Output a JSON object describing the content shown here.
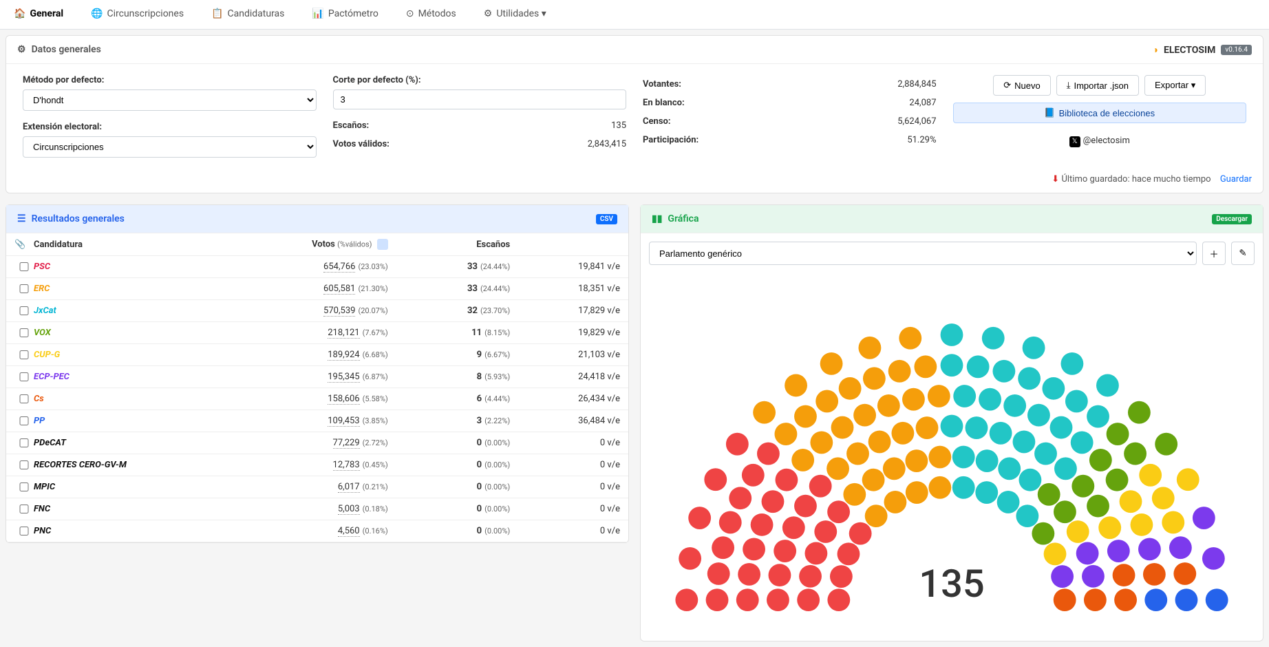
{
  "nav": {
    "tabs": [
      {
        "label": "General",
        "icon": "🏠",
        "active": true
      },
      {
        "label": "Circunscripciones",
        "icon": "🌐"
      },
      {
        "label": "Candidaturas",
        "icon": "📋"
      },
      {
        "label": "Pactómetro",
        "icon": "📊"
      },
      {
        "label": "Métodos",
        "icon": "⊙"
      },
      {
        "label": "Utilidades ▾",
        "icon": "⚙"
      }
    ]
  },
  "brand": {
    "name": "ELECTOSIM",
    "version": "v0.16.4",
    "logo_color": "#f59e0b"
  },
  "general": {
    "title": "Datos generales",
    "method_label": "Método por defecto:",
    "method_value": "D'hondt",
    "extension_label": "Extensión electoral:",
    "extension_value": "Circunscripciones",
    "cut_label": "Corte por defecto (%):",
    "cut_value": "3",
    "seats_label": "Escaños:",
    "seats_value": "135",
    "valid_label": "Votos válidos:",
    "valid_value": "2,843,415",
    "voters_label": "Votantes:",
    "voters_value": "2,884,845",
    "blank_label": "En blanco:",
    "blank_value": "24,087",
    "census_label": "Censo:",
    "census_value": "5,624,067",
    "turnout_label": "Participación:",
    "turnout_value": "51.29%",
    "btn_new": "Nuevo",
    "btn_import": "Importar .json",
    "btn_export": "Exportar ▾",
    "btn_library": "Biblioteca de elecciones",
    "social_handle": "@electosim",
    "last_saved_prefix": "Último guardado: ",
    "last_saved_value": "hace mucho tiempo",
    "save_link": "Guardar"
  },
  "results": {
    "title": "Resultados generales",
    "csv_badge": "CSV",
    "col_party": "Candidatura",
    "col_votes": "Votos",
    "col_votes_sub": "(%válidos)",
    "col_seats": "Escaños",
    "rows": [
      {
        "name": "PSC",
        "color": "#e11d48",
        "votes": "654,766",
        "vpct": "(23.03%)",
        "seats": "33",
        "spct": "(24.44%)",
        "ve": "19,841 v/e"
      },
      {
        "name": "ERC",
        "color": "#f59e0b",
        "votes": "605,581",
        "vpct": "(21.30%)",
        "seats": "33",
        "spct": "(24.44%)",
        "ve": "18,351 v/e"
      },
      {
        "name": "JxCat",
        "color": "#06b6d4",
        "votes": "570,539",
        "vpct": "(20.07%)",
        "seats": "32",
        "spct": "(23.70%)",
        "ve": "17,829 v/e"
      },
      {
        "name": "VOX",
        "color": "#65a30d",
        "votes": "218,121",
        "vpct": "(7.67%)",
        "seats": "11",
        "spct": "(8.15%)",
        "ve": "19,829 v/e"
      },
      {
        "name": "CUP-G",
        "color": "#facc15",
        "votes": "189,924",
        "vpct": "(6.68%)",
        "seats": "9",
        "spct": "(6.67%)",
        "ve": "21,103 v/e"
      },
      {
        "name": "ECP-PEC",
        "color": "#7c3aed",
        "votes": "195,345",
        "vpct": "(6.87%)",
        "seats": "8",
        "spct": "(5.93%)",
        "ve": "24,418 v/e"
      },
      {
        "name": "Cs",
        "color": "#ea580c",
        "votes": "158,606",
        "vpct": "(5.58%)",
        "seats": "6",
        "spct": "(4.44%)",
        "ve": "26,434 v/e"
      },
      {
        "name": "PP",
        "color": "#2563eb",
        "votes": "109,453",
        "vpct": "(3.85%)",
        "seats": "3",
        "spct": "(2.22%)",
        "ve": "36,484 v/e"
      },
      {
        "name": "PDeCAT",
        "color": "#111",
        "votes": "77,229",
        "vpct": "(2.72%)",
        "seats": "0",
        "spct": "(0.00%)",
        "ve": "0 v/e"
      },
      {
        "name": "RECORTES CERO-GV-M",
        "color": "#111",
        "votes": "12,783",
        "vpct": "(0.45%)",
        "seats": "0",
        "spct": "(0.00%)",
        "ve": "0 v/e"
      },
      {
        "name": "MPIC",
        "color": "#111",
        "votes": "6,017",
        "vpct": "(0.21%)",
        "seats": "0",
        "spct": "(0.00%)",
        "ve": "0 v/e"
      },
      {
        "name": "FNC",
        "color": "#111",
        "votes": "5,003",
        "vpct": "(0.18%)",
        "seats": "0",
        "spct": "(0.00%)",
        "ve": "0 v/e"
      },
      {
        "name": "PNC",
        "color": "#111",
        "votes": "4,560",
        "vpct": "(0.16%)",
        "seats": "0",
        "spct": "(0.00%)",
        "ve": "0 v/e"
      }
    ]
  },
  "chart": {
    "title": "Gráfica",
    "download_badge": "Descargar",
    "select_value": "Parlamento genérico",
    "total_seats": "135",
    "parties": [
      {
        "color": "#ef4444",
        "seats": 33
      },
      {
        "color": "#f59e0b",
        "seats": 33
      },
      {
        "color": "#22c6c6",
        "seats": 32
      },
      {
        "color": "#65a30d",
        "seats": 11
      },
      {
        "color": "#facc15",
        "seats": 9
      },
      {
        "color": "#7c3aed",
        "seats": 8
      },
      {
        "color": "#ea580c",
        "seats": 6
      },
      {
        "color": "#2563eb",
        "seats": 3
      }
    ]
  }
}
